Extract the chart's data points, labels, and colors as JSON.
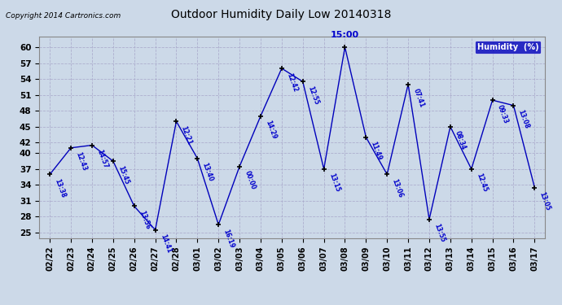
{
  "title": "Outdoor Humidity Daily Low 20140318",
  "copyright": "Copyright 2014 Cartronics.com",
  "legend_label": "Humidity  (%)",
  "x_labels": [
    "02/22",
    "02/23",
    "02/24",
    "02/25",
    "02/26",
    "02/27",
    "02/28",
    "03/01",
    "03/02",
    "03/03",
    "03/04",
    "03/05",
    "03/06",
    "03/07",
    "03/08",
    "03/09",
    "03/10",
    "03/11",
    "03/12",
    "03/13",
    "03/14",
    "03/15",
    "03/16",
    "03/17"
  ],
  "y_values": [
    36,
    41,
    41.5,
    38.5,
    30,
    25.5,
    46,
    39,
    26.5,
    37.5,
    47,
    56,
    53.5,
    37,
    60,
    43,
    36,
    53,
    27.5,
    45,
    37,
    50,
    49,
    33.5
  ],
  "time_labels": [
    "13:38",
    "12:43",
    "14:57",
    "15:45",
    "13:56",
    "14:41",
    "12:21",
    "13:40",
    "16:19",
    "00:00",
    "14:29",
    "12:42",
    "12:55",
    "13:15",
    "15:00",
    "11:49",
    "13:06",
    "07:41",
    "13:55",
    "08:34",
    "12:45",
    "09:33",
    "13:08",
    "13:05"
  ],
  "peak_idx": 14,
  "peak_label": "15:00",
  "ylim": [
    24,
    62
  ],
  "yticks": [
    25,
    28,
    31,
    34,
    37,
    40,
    42,
    45,
    48,
    51,
    54,
    57,
    60
  ],
  "line_color": "#0000bb",
  "marker_color": "#000000",
  "bg_color": "#ccd9e8",
  "plot_bg_color": "#ccd9e8",
  "grid_color": "#aaaacc",
  "title_color": "#000000",
  "copyright_color": "#000000",
  "label_color": "#0000cc",
  "legend_bg": "#0000bb",
  "legend_text_color": "#ffffff"
}
